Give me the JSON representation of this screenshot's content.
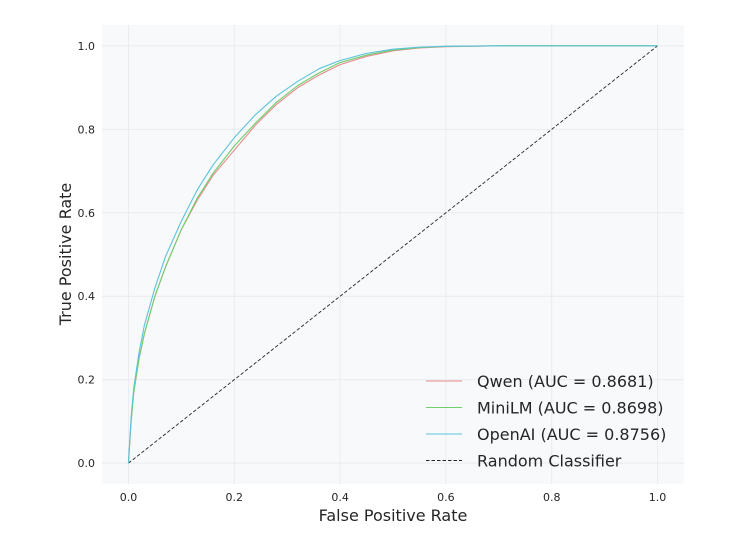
{
  "chart_data": {
    "type": "line",
    "title": "",
    "xlabel": "False Positive Rate",
    "ylabel": "True Positive Rate",
    "xlim": [
      -0.05,
      1.05
    ],
    "ylim": [
      -0.05,
      1.05
    ],
    "xticks": [
      0.0,
      0.2,
      0.4,
      0.6,
      0.8,
      1.0
    ],
    "yticks": [
      0.0,
      0.2,
      0.4,
      0.6,
      0.8,
      1.0
    ],
    "xtick_labels": [
      "0.0",
      "0.2",
      "0.4",
      "0.6",
      "0.8",
      "1.0"
    ],
    "ytick_labels": [
      "0.0",
      "0.2",
      "0.4",
      "0.6",
      "0.8",
      "1.0"
    ],
    "grid": true,
    "background": "#f7f9fa",
    "legend_position": "lower-right",
    "series": [
      {
        "name": "Qwen (AUC = 0.8681)",
        "color": "#e8898e",
        "dash": "solid",
        "x": [
          0,
          0.005,
          0.01,
          0.02,
          0.03,
          0.05,
          0.07,
          0.1,
          0.13,
          0.16,
          0.2,
          0.24,
          0.28,
          0.32,
          0.36,
          0.4,
          0.45,
          0.5,
          0.55,
          0.6,
          0.7,
          0.8,
          0.9,
          1.0
        ],
        "y": [
          0,
          0.1,
          0.17,
          0.25,
          0.31,
          0.4,
          0.47,
          0.56,
          0.63,
          0.69,
          0.75,
          0.81,
          0.86,
          0.9,
          0.93,
          0.955,
          0.975,
          0.988,
          0.995,
          0.998,
          1.0,
          1.0,
          1.0,
          1.0
        ]
      },
      {
        "name": "MiniLM (AUC = 0.8698)",
        "color": "#6fcf6b",
        "dash": "solid",
        "x": [
          0,
          0.005,
          0.01,
          0.02,
          0.03,
          0.05,
          0.07,
          0.1,
          0.13,
          0.16,
          0.2,
          0.24,
          0.28,
          0.32,
          0.36,
          0.4,
          0.45,
          0.5,
          0.55,
          0.6,
          0.7,
          0.8,
          0.9,
          1.0
        ],
        "y": [
          0,
          0.1,
          0.17,
          0.25,
          0.31,
          0.4,
          0.47,
          0.56,
          0.635,
          0.695,
          0.76,
          0.815,
          0.865,
          0.905,
          0.935,
          0.96,
          0.978,
          0.99,
          0.996,
          0.999,
          1.0,
          1.0,
          1.0,
          1.0
        ]
      },
      {
        "name": "OpenAI (AUC = 0.8756)",
        "color": "#5cc3dd",
        "dash": "solid",
        "x": [
          0,
          0.005,
          0.01,
          0.02,
          0.03,
          0.05,
          0.07,
          0.1,
          0.13,
          0.16,
          0.2,
          0.24,
          0.28,
          0.32,
          0.36,
          0.4,
          0.45,
          0.5,
          0.55,
          0.6,
          0.7,
          0.8,
          0.9,
          1.0
        ],
        "y": [
          0,
          0.11,
          0.18,
          0.265,
          0.33,
          0.42,
          0.495,
          0.58,
          0.655,
          0.715,
          0.78,
          0.835,
          0.88,
          0.915,
          0.945,
          0.965,
          0.982,
          0.992,
          0.997,
          0.999,
          1.0,
          1.0,
          1.0,
          1.0
        ]
      },
      {
        "name": "Random Classifier",
        "color": "#262626",
        "dash": "dashed",
        "x": [
          0,
          1
        ],
        "y": [
          0,
          1
        ]
      }
    ]
  }
}
